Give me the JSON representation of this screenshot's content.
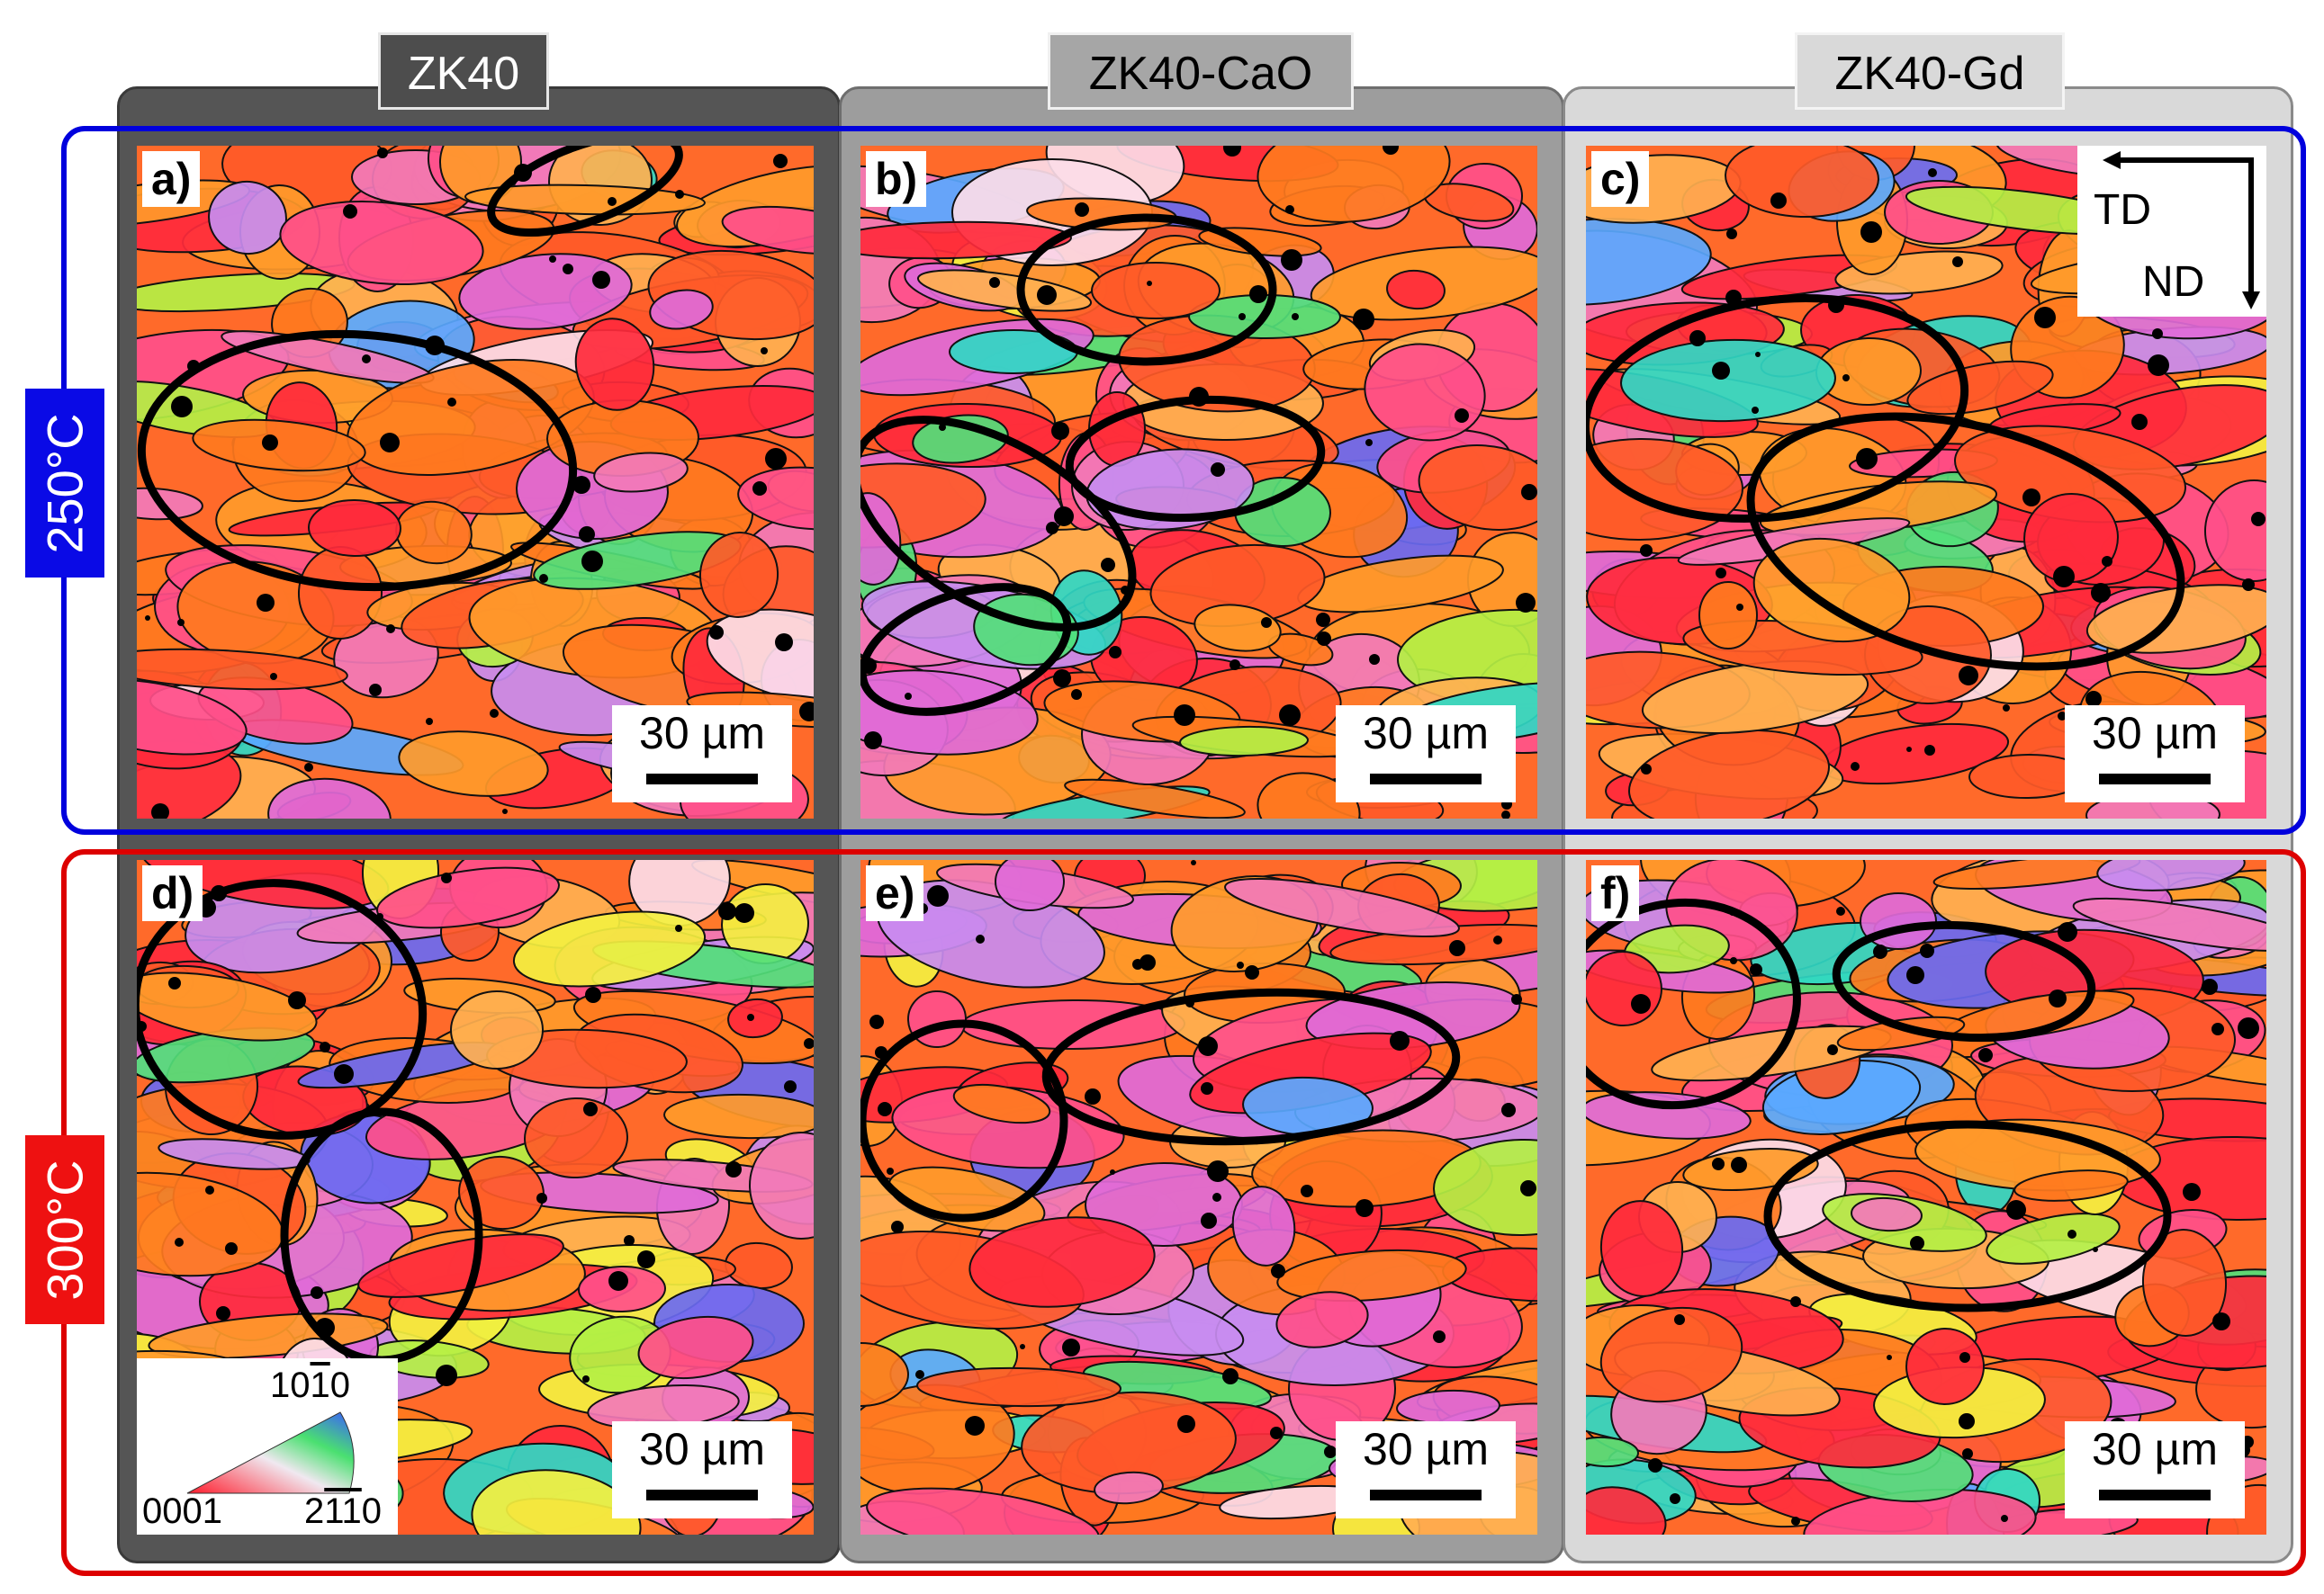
{
  "columns": [
    {
      "label": "ZK40"
    },
    {
      "label": "ZK40-CaO"
    },
    {
      "label": "ZK40-Gd"
    }
  ],
  "rows": [
    {
      "label": "250°C",
      "color": "#0000dd"
    },
    {
      "label": "300°C",
      "color": "#dd0000"
    }
  ],
  "panels": [
    {
      "label": "a)",
      "scale": "30 µm"
    },
    {
      "label": "b)",
      "scale": "30 µm"
    },
    {
      "label": "c)",
      "scale": "30 µm"
    },
    {
      "label": "d)",
      "scale": "30 µm"
    },
    {
      "label": "e)",
      "scale": "30 µm"
    },
    {
      "label": "f)",
      "scale": "30 µm"
    }
  ],
  "orientation_axes": {
    "horizontal": "TD",
    "vertical": "ND"
  },
  "ipf_legend": {
    "top": "1010",
    "left": "0001",
    "right": "2110"
  },
  "palette": [
    "#ff2a3c",
    "#ff5a28",
    "#ff7a1e",
    "#ff9a2a",
    "#ff4f8a",
    "#f27ab8",
    "#e06ad8",
    "#c88cf0",
    "#ffb050",
    "#f4f040",
    "#b4f044",
    "#52e07a",
    "#30d8c4",
    "#5aa8ff",
    "#6a6af2",
    "#fcdce8"
  ]
}
